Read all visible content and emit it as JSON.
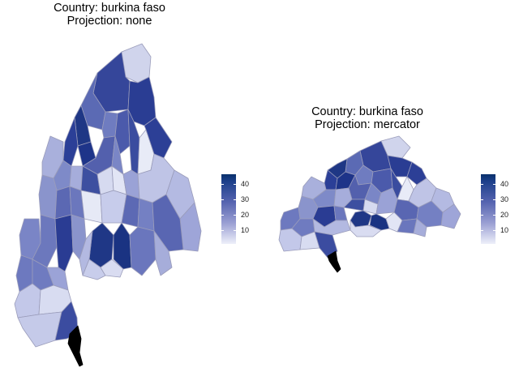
{
  "maps": [
    {
      "country_label": "Country: burkina faso",
      "projection_label": "Projection: none",
      "legend_ticks": [
        "40",
        "30",
        "20",
        "10"
      ],
      "colors": {
        "low": "#eef0fa",
        "mid": "#5664b0",
        "high": "#08306b",
        "border": "#9a9cba",
        "highlight": "#000000"
      }
    },
    {
      "country_label": "Country: burkina faso",
      "projection_label": "Projection: mercator",
      "legend_ticks": [
        "40",
        "30",
        "20",
        "10"
      ],
      "colors": {
        "low": "#eef0fa",
        "mid": "#5664b0",
        "high": "#08306b",
        "border": "#9a9cba",
        "highlight": "#000000"
      }
    }
  ]
}
